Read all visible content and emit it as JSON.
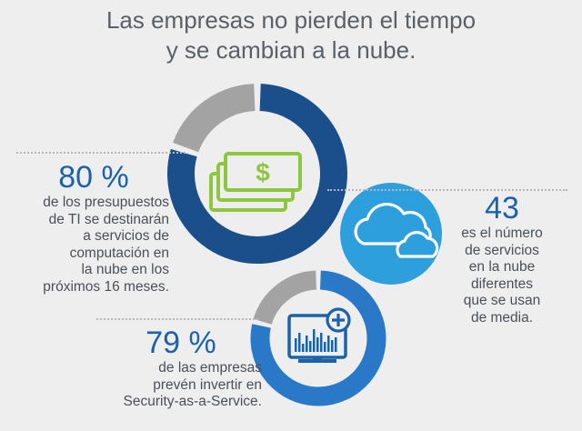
{
  "header": {
    "title_line1": "Las empresas no pierden el tiempo",
    "title_line2": "y se cambian a la nube."
  },
  "stats": {
    "budget": {
      "value": "80 %",
      "lines": [
        "de los presupuestos",
        "de TI se destinarán",
        "a servicios de",
        "computación en",
        "la nube en los",
        "próximos 16 meses."
      ]
    },
    "services": {
      "value": "43",
      "lines": [
        "es el número",
        "de servicios",
        "en la nube",
        "diferentes",
        "que se usan",
        "de media."
      ]
    },
    "security": {
      "value": "79 %",
      "lines": [
        "de las empresas",
        "prevén invertir en",
        "Security-as-a-Service."
      ]
    }
  },
  "icons": [
    "money-stack-icon",
    "cloud-icon",
    "monitor-chart-plus-icon"
  ],
  "colors": {
    "dark_blue": "#1b4f8c",
    "mid_blue": "#2a78c8",
    "light_blue": "#2d9fdc",
    "gray": "#a3a3a3",
    "green": "#8dc63f",
    "value_text": "#1b62ab"
  },
  "chart_data": [
    {
      "type": "pie",
      "labels": [
        "80 %",
        ""
      ],
      "values": [
        80,
        20
      ],
      "colors": [
        "#1b4f8c",
        "#a3a3a3"
      ]
    },
    {
      "type": "pie",
      "labels": [
        "79 %",
        ""
      ],
      "values": [
        79,
        21
      ],
      "colors": [
        "#2a78c8",
        "#a3a3a3"
      ]
    }
  ]
}
